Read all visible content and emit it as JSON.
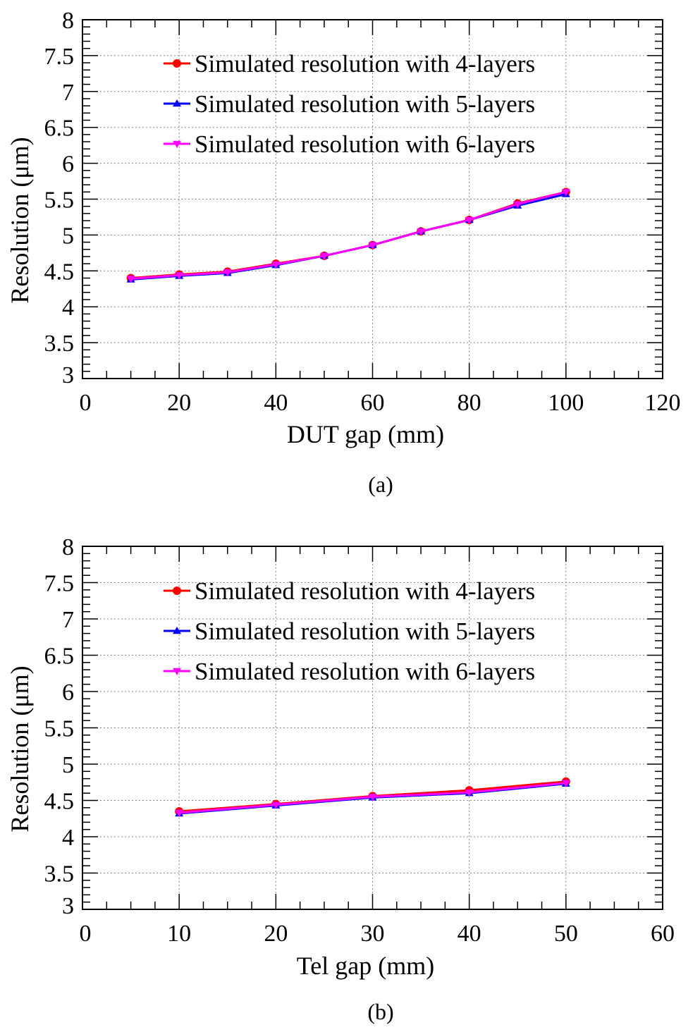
{
  "chart_data": [
    {
      "type": "line",
      "panel_label": "(a)",
      "xlabel": "DUT gap (mm)",
      "ylabel": "Resolution (μm)",
      "xlim": [
        0,
        120
      ],
      "ylim": [
        3,
        8
      ],
      "xticks": [
        0,
        20,
        40,
        60,
        80,
        100,
        120
      ],
      "yticks": [
        3,
        3.5,
        4,
        4.5,
        5,
        5.5,
        6,
        6.5,
        7,
        7.5,
        8
      ],
      "grid": true,
      "legend_position": "top-right",
      "x": [
        10,
        20,
        30,
        40,
        50,
        60,
        70,
        80,
        90,
        100
      ],
      "series": [
        {
          "name": "Simulated resolution with 4-layers",
          "color": "#ff0000",
          "marker": "circle",
          "values": [
            4.4,
            4.45,
            4.49,
            4.6,
            4.71,
            4.86,
            5.05,
            5.21,
            5.44,
            5.6
          ]
        },
        {
          "name": "Simulated resolution with 5-layers",
          "color": "#0000ff",
          "marker": "triangle-up",
          "values": [
            4.38,
            4.43,
            4.47,
            4.58,
            4.71,
            4.86,
            5.05,
            5.21,
            5.41,
            5.57
          ]
        },
        {
          "name": "Simulated resolution with 6-layers",
          "color": "#ff00ff",
          "marker": "triangle-down",
          "values": [
            4.39,
            4.44,
            4.48,
            4.59,
            4.71,
            4.86,
            5.05,
            5.21,
            5.43,
            5.6
          ]
        }
      ]
    },
    {
      "type": "line",
      "panel_label": "(b)",
      "xlabel": "Tel gap (mm)",
      "ylabel": "Resolution (μm)",
      "xlim": [
        0,
        60
      ],
      "ylim": [
        3,
        8
      ],
      "xticks": [
        0,
        10,
        20,
        30,
        40,
        50,
        60
      ],
      "yticks": [
        3,
        3.5,
        4,
        4.5,
        5,
        5.5,
        6,
        6.5,
        7,
        7.5,
        8
      ],
      "grid": true,
      "legend_position": "top-right",
      "x": [
        10,
        20,
        30,
        40,
        50
      ],
      "series": [
        {
          "name": "Simulated resolution with 4-layers",
          "color": "#ff0000",
          "marker": "circle",
          "values": [
            4.35,
            4.45,
            4.56,
            4.64,
            4.76
          ]
        },
        {
          "name": "Simulated resolution with 5-layers",
          "color": "#0000ff",
          "marker": "triangle-up",
          "values": [
            4.32,
            4.43,
            4.54,
            4.6,
            4.73
          ]
        },
        {
          "name": "Simulated resolution with 6-layers",
          "color": "#ff00ff",
          "marker": "triangle-down",
          "values": [
            4.33,
            4.44,
            4.55,
            4.61,
            4.74
          ]
        }
      ]
    }
  ]
}
